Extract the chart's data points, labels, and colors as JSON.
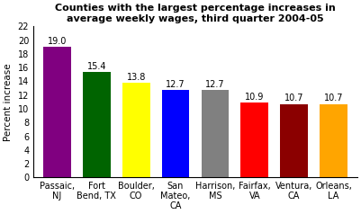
{
  "categories": [
    "Passaic,\nNJ",
    "Fort\nBend, TX",
    "Boulder,\nCO",
    "San\nMateo,\nCA",
    "Harrison,\nMS",
    "Fairfax,\nVA",
    "Ventura,\nCA",
    "Orleans,\nLA"
  ],
  "values": [
    19.0,
    15.4,
    13.8,
    12.7,
    12.7,
    10.9,
    10.7,
    10.7
  ],
  "bar_colors": [
    "#800080",
    "#006400",
    "#FFFF00",
    "#0000FF",
    "#808080",
    "#FF0000",
    "#8B0000",
    "#FFA500"
  ],
  "title": "Counties with the largest percentage increases in\naverage weekly wages, third quarter 2004-05",
  "ylabel": "Percent increase",
  "ylim": [
    0,
    22
  ],
  "yticks": [
    0,
    2,
    4,
    6,
    8,
    10,
    12,
    14,
    16,
    18,
    20,
    22
  ],
  "title_fontsize": 8.0,
  "label_fontsize": 7.5,
  "tick_fontsize": 7.0,
  "value_fontsize": 7.0,
  "background_color": "#ffffff",
  "bar_width": 0.7
}
